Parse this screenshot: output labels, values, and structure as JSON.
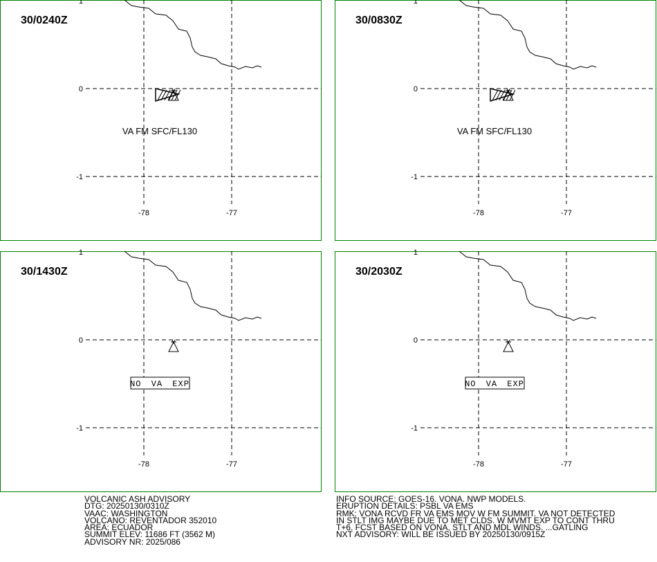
{
  "panels": [
    {
      "time": "30/0240Z",
      "annotation": "VA FM SFC/FL130",
      "ash_polygon": true
    },
    {
      "time": "30/0830Z",
      "annotation": "VA FM SFC/FL130",
      "ash_polygon": true
    },
    {
      "time": "30/1430Z",
      "annotation": "NO VA EXP",
      "ash_polygon": false
    },
    {
      "time": "30/2030Z",
      "annotation": "NO VA EXP",
      "ash_polygon": false
    }
  ],
  "lat_ticks": [
    1,
    0,
    -1
  ],
  "lon_ticks": [
    -78,
    -77
  ],
  "advisory_left": [
    "VOLCANIC ASH ADVISORY",
    "DTG: 20250130/0310Z",
    "VAAC: WASHINGTON",
    "VOLCANO: REVENTADOR 352010",
    "AREA: ECUADOR",
    "SUMMIT ELEV: 11686 FT (3562 M)",
    "ADVISORY NR: 2025/086"
  ],
  "advisory_right": [
    "INFO SOURCE: GOES-16. VONA. NWP MODELS.",
    "ERUPTION DETAILS: PSBL VA EMS",
    "RMK: VONA RCVD FR VA EMS MOV W FM SUMMIT. VA NOT DETECTED",
    "IN STLT IMG MAYBE DUE TO MET CLDS. W MVMT EXP TO CONT THRU",
    "T+6. FCST BASED ON VONA, STLT AND MDL WINDS. ...GATLING",
    "NXT ADVISORY: WILL BE ISSUED BY 20250130/0915Z"
  ]
}
